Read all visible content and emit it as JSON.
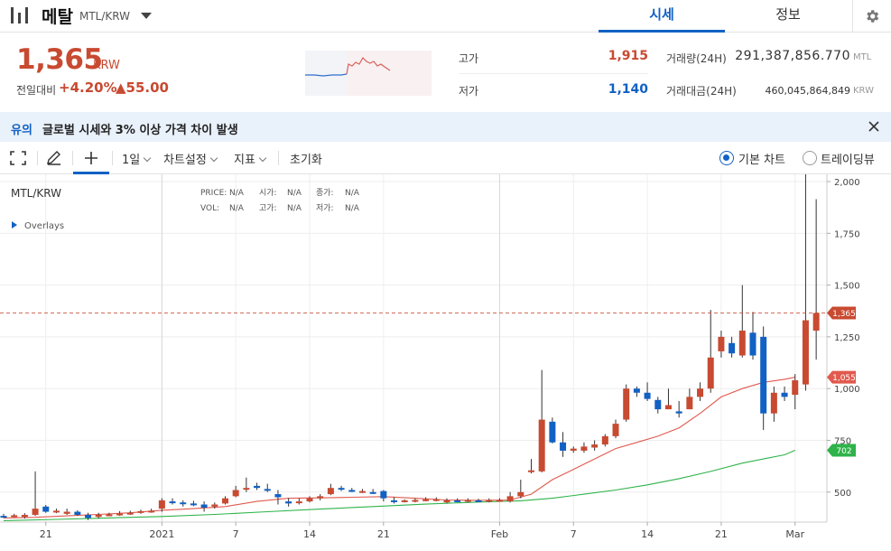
{
  "header": {
    "coin_name": "메탈",
    "coin_pair": "MTL/KRW",
    "tabs": [
      {
        "label": "시세",
        "active": true
      },
      {
        "label": "정보",
        "active": false
      }
    ]
  },
  "summary": {
    "price": "1,365",
    "price_unit": "KRW",
    "change_label": "전일대비",
    "change_pct": "+4.20%",
    "change_abs": "▲55.00",
    "high_label": "고가",
    "high_value": "1,915",
    "low_label": "저가",
    "low_value": "1,140",
    "volume_label": "거래량(24H)",
    "volume_value": "291,387,856.770",
    "volume_unit": "MTL",
    "amount_label": "거래대금(24H)",
    "amount_value": "460,045,864,849",
    "amount_unit": "KRW"
  },
  "notice": {
    "label": "유의",
    "text": "글로벌 시세와 3% 이상 가격 차이 발생"
  },
  "toolbar": {
    "interval": "1일",
    "chart_settings": "차트설정",
    "indicators": "지표",
    "reset": "초기화",
    "basic_chart": "기본 차트",
    "tradingview": "트레이딩뷰"
  },
  "colors": {
    "up": "#c84a31",
    "down": "#1261c4",
    "ma_short": "#e05a4e",
    "ma_long": "#2fb34a"
  },
  "chart_data": {
    "type": "candlestick",
    "title": "MTL/KRW",
    "overlays_label": "Overlays",
    "ohlc_labels": {
      "price": "PRICE:",
      "price_val": "N/A",
      "open": "시가:",
      "open_val": "N/A",
      "close": "종가:",
      "close_val": "N/A",
      "vol": "VOL:",
      "vol_val": "N/A",
      "high": "고가:",
      "high_val": "N/A",
      "low": "저가:",
      "low_val": "N/A"
    },
    "y_ticks": [
      500,
      750,
      1000,
      1250,
      1500,
      1750,
      2000
    ],
    "y_tick_labels": [
      "500",
      "750",
      "1,000",
      "1,250",
      "1,500",
      "1,750",
      "2,000"
    ],
    "ylim": [
      355,
      2035
    ],
    "x_tick_labels": [
      {
        "i": 4,
        "label": "21"
      },
      {
        "i": 15,
        "label": "2021"
      },
      {
        "i": 22,
        "label": "7"
      },
      {
        "i": 29,
        "label": "14"
      },
      {
        "i": 36,
        "label": "21"
      },
      {
        "i": 47,
        "label": "Feb"
      },
      {
        "i": 54,
        "label": "7"
      },
      {
        "i": 61,
        "label": "14"
      },
      {
        "i": 68,
        "label": "21"
      },
      {
        "i": 75,
        "label": "Mar"
      }
    ],
    "last_price": 1365,
    "last_price_label": "1,365",
    "ma_short_last_label": "1,055",
    "ma_long_last_label": "702",
    "candles": [
      [
        385,
        380,
        395,
        375
      ],
      [
        385,
        388,
        395,
        378
      ],
      [
        380,
        390,
        398,
        372
      ],
      [
        390,
        420,
        600,
        385
      ],
      [
        430,
        405,
        438,
        400
      ],
      [
        405,
        410,
        420,
        398
      ],
      [
        395,
        405,
        420,
        390
      ],
      [
        405,
        390,
        412,
        385
      ],
      [
        390,
        375,
        400,
        365
      ],
      [
        380,
        390,
        400,
        372
      ],
      [
        390,
        392,
        400,
        385
      ],
      [
        390,
        396,
        408,
        385
      ],
      [
        395,
        400,
        410,
        390
      ],
      [
        400,
        408,
        415,
        395
      ],
      [
        405,
        410,
        420,
        400
      ],
      [
        420,
        460,
        470,
        405
      ],
      [
        455,
        452,
        470,
        440
      ],
      [
        450,
        446,
        460,
        430
      ],
      [
        445,
        440,
        458,
        432
      ],
      [
        440,
        425,
        455,
        405
      ],
      [
        430,
        440,
        450,
        420
      ],
      [
        445,
        470,
        480,
        440
      ],
      [
        480,
        510,
        530,
        475
      ],
      [
        515,
        520,
        570,
        500
      ],
      [
        530,
        520,
        545,
        510
      ],
      [
        515,
        510,
        540,
        500
      ],
      [
        490,
        475,
        510,
        440
      ],
      [
        455,
        445,
        470,
        430
      ],
      [
        450,
        455,
        470,
        440
      ],
      [
        455,
        470,
        480,
        450
      ],
      [
        470,
        480,
        490,
        460
      ],
      [
        490,
        520,
        540,
        485
      ],
      [
        520,
        515,
        530,
        505
      ],
      [
        510,
        508,
        520,
        500
      ],
      [
        500,
        505,
        515,
        495
      ],
      [
        500,
        495,
        515,
        490
      ],
      [
        505,
        470,
        510,
        455
      ],
      [
        460,
        455,
        475,
        445
      ],
      [
        458,
        460,
        465,
        450
      ],
      [
        455,
        462,
        470,
        450
      ],
      [
        460,
        465,
        475,
        455
      ],
      [
        460,
        466,
        475,
        455
      ],
      [
        450,
        460,
        470,
        445
      ],
      [
        460,
        455,
        470,
        450
      ],
      [
        458,
        462,
        470,
        450
      ],
      [
        460,
        458,
        468,
        452
      ],
      [
        455,
        462,
        470,
        450
      ],
      [
        460,
        462,
        470,
        455
      ],
      [
        455,
        480,
        500,
        450
      ],
      [
        480,
        500,
        560,
        470
      ],
      [
        600,
        605,
        660,
        590
      ],
      [
        600,
        850,
        1090,
        595
      ],
      [
        840,
        740,
        860,
        735
      ],
      [
        740,
        700,
        790,
        670
      ],
      [
        700,
        710,
        720,
        690
      ],
      [
        700,
        720,
        740,
        690
      ],
      [
        715,
        730,
        750,
        700
      ],
      [
        730,
        770,
        780,
        720
      ],
      [
        770,
        830,
        850,
        760
      ],
      [
        850,
        1000,
        1020,
        840
      ],
      [
        1000,
        980,
        1010,
        960
      ],
      [
        980,
        950,
        1030,
        940
      ],
      [
        945,
        900,
        960,
        880
      ],
      [
        900,
        920,
        1000,
        900
      ],
      [
        890,
        880,
        940,
        860
      ],
      [
        900,
        960,
        1000,
        900
      ],
      [
        960,
        1000,
        1030,
        940
      ],
      [
        1000,
        1150,
        1380,
        980
      ],
      [
        1180,
        1250,
        1280,
        1150
      ],
      [
        1220,
        1170,
        1250,
        1150
      ],
      [
        1160,
        1280,
        1500,
        1150
      ],
      [
        1270,
        1160,
        1370,
        1140
      ],
      [
        1250,
        880,
        1300,
        800
      ],
      [
        880,
        980,
        1010,
        840
      ],
      [
        980,
        960,
        1010,
        940
      ],
      [
        970,
        1040,
        1070,
        900
      ],
      [
        1020,
        1330,
        2035,
        990
      ],
      [
        1280,
        1365,
        1915,
        1140
      ]
    ],
    "ma_short": [
      [
        0,
        375
      ],
      [
        3,
        378
      ],
      [
        6,
        385
      ],
      [
        9,
        392
      ],
      [
        12,
        400
      ],
      [
        15,
        412
      ],
      [
        18,
        420
      ],
      [
        21,
        430
      ],
      [
        24,
        455
      ],
      [
        27,
        470
      ],
      [
        30,
        472
      ],
      [
        33,
        475
      ],
      [
        36,
        478
      ],
      [
        39,
        470
      ],
      [
        42,
        462
      ],
      [
        45,
        460
      ],
      [
        48,
        462
      ],
      [
        50,
        490
      ],
      [
        52,
        560
      ],
      [
        54,
        610
      ],
      [
        56,
        660
      ],
      [
        58,
        710
      ],
      [
        60,
        740
      ],
      [
        62,
        770
      ],
      [
        64,
        810
      ],
      [
        66,
        880
      ],
      [
        68,
        960
      ],
      [
        70,
        1000
      ],
      [
        72,
        1030
      ],
      [
        74,
        1045
      ],
      [
        75,
        1055
      ]
    ],
    "ma_long": [
      [
        0,
        362
      ],
      [
        5,
        368
      ],
      [
        10,
        375
      ],
      [
        15,
        382
      ],
      [
        20,
        392
      ],
      [
        25,
        405
      ],
      [
        30,
        418
      ],
      [
        35,
        430
      ],
      [
        40,
        442
      ],
      [
        45,
        452
      ],
      [
        49,
        458
      ],
      [
        52,
        470
      ],
      [
        55,
        490
      ],
      [
        58,
        510
      ],
      [
        61,
        535
      ],
      [
        64,
        565
      ],
      [
        67,
        600
      ],
      [
        70,
        640
      ],
      [
        72,
        660
      ],
      [
        74,
        680
      ],
      [
        75,
        702
      ]
    ]
  }
}
